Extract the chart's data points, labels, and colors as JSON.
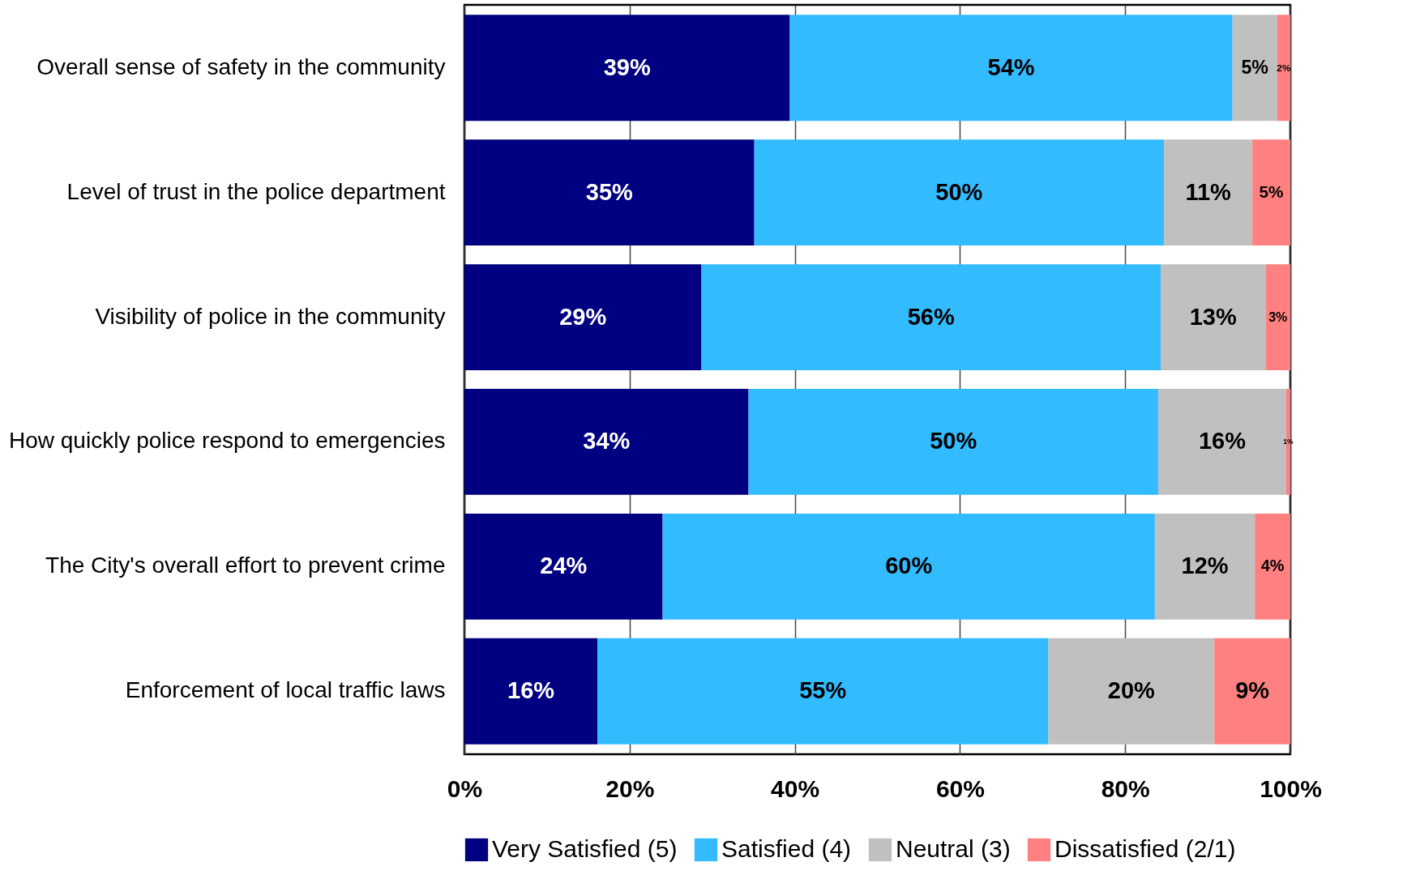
{
  "chart_data": {
    "type": "bar",
    "orientation": "horizontal",
    "stacked": true,
    "categories": [
      "Overall sense of safety in the community",
      "Level of trust in the police department",
      "Visibility of police in the community",
      "How quickly police respond to emergencies",
      "The City's overall effort to prevent crime",
      "Enforcement of local traffic laws"
    ],
    "series": [
      {
        "name": "Very Satisfied (5)",
        "color": "#000080",
        "values": [
          39.4,
          35.1,
          28.7,
          34.4,
          24.0,
          16.1
        ],
        "value_labels": [
          "39%",
          "35%",
          "29%",
          "34%",
          "24%",
          "16%"
        ]
      },
      {
        "name": "Satisfied (4)",
        "color": "#33bbff",
        "values": [
          53.6,
          49.6,
          55.6,
          49.6,
          59.6,
          54.6
        ],
        "value_labels": [
          "54%",
          "50%",
          "56%",
          "50%",
          "60%",
          "55%"
        ]
      },
      {
        "name": "Neutral (3)",
        "color": "#c0c0c0",
        "values": [
          5.4,
          10.7,
          12.7,
          15.5,
          12.1,
          20.1
        ],
        "value_labels": [
          "5%",
          "11%",
          "13%",
          "16%",
          "12%",
          "20%"
        ]
      },
      {
        "name": "Dissatisfied (2/1)",
        "color": "#ff8080",
        "values": [
          1.6,
          4.6,
          3.0,
          0.5,
          4.3,
          9.2
        ],
        "value_labels": [
          "2%",
          "5%",
          "3%",
          "1%",
          "4%",
          "9%"
        ]
      }
    ],
    "xlim": [
      0,
      100
    ],
    "xticks": [
      {
        "value": 0,
        "label": "0%"
      },
      {
        "value": 20,
        "label": "20%"
      },
      {
        "value": 40,
        "label": "40%"
      },
      {
        "value": 60,
        "label": "60%"
      },
      {
        "value": 80,
        "label": "80%"
      },
      {
        "value": 100,
        "label": "100%"
      }
    ],
    "grid": "x",
    "legend": "bottom"
  }
}
